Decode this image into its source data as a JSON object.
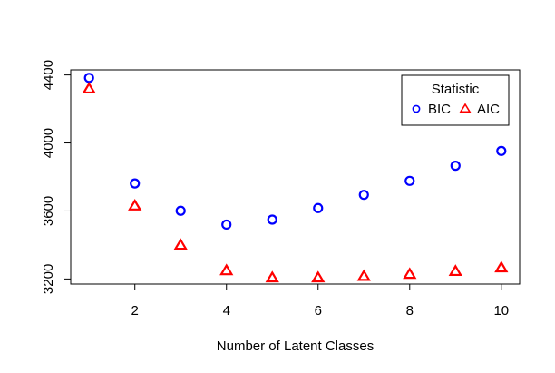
{
  "chart_data": {
    "type": "scatter",
    "xlabel": "Number of Latent Classes",
    "ylabel": "",
    "x": [
      1,
      2,
      3,
      4,
      5,
      6,
      7,
      8,
      9,
      10
    ],
    "xlim": [
      0.6,
      10.4
    ],
    "ylim": [
      3170,
      4430
    ],
    "xticks": [
      2,
      4,
      6,
      8,
      10
    ],
    "yticks": [
      3200,
      3600,
      4000,
      4400
    ],
    "series": [
      {
        "name": "BIC",
        "marker": "circle",
        "color": "#0000ff",
        "values": [
          4383,
          3762,
          3601,
          3520,
          3549,
          3617,
          3695,
          3777,
          3866,
          3953
        ]
      },
      {
        "name": "AIC",
        "marker": "triangle",
        "color": "#ff0000",
        "values": [
          4316,
          3628,
          3397,
          3247,
          3205,
          3205,
          3214,
          3226,
          3243,
          3264
        ]
      }
    ],
    "legend": {
      "title": "Statistic",
      "position": "top-right",
      "items": [
        "BIC",
        "AIC"
      ]
    },
    "grid": false
  }
}
